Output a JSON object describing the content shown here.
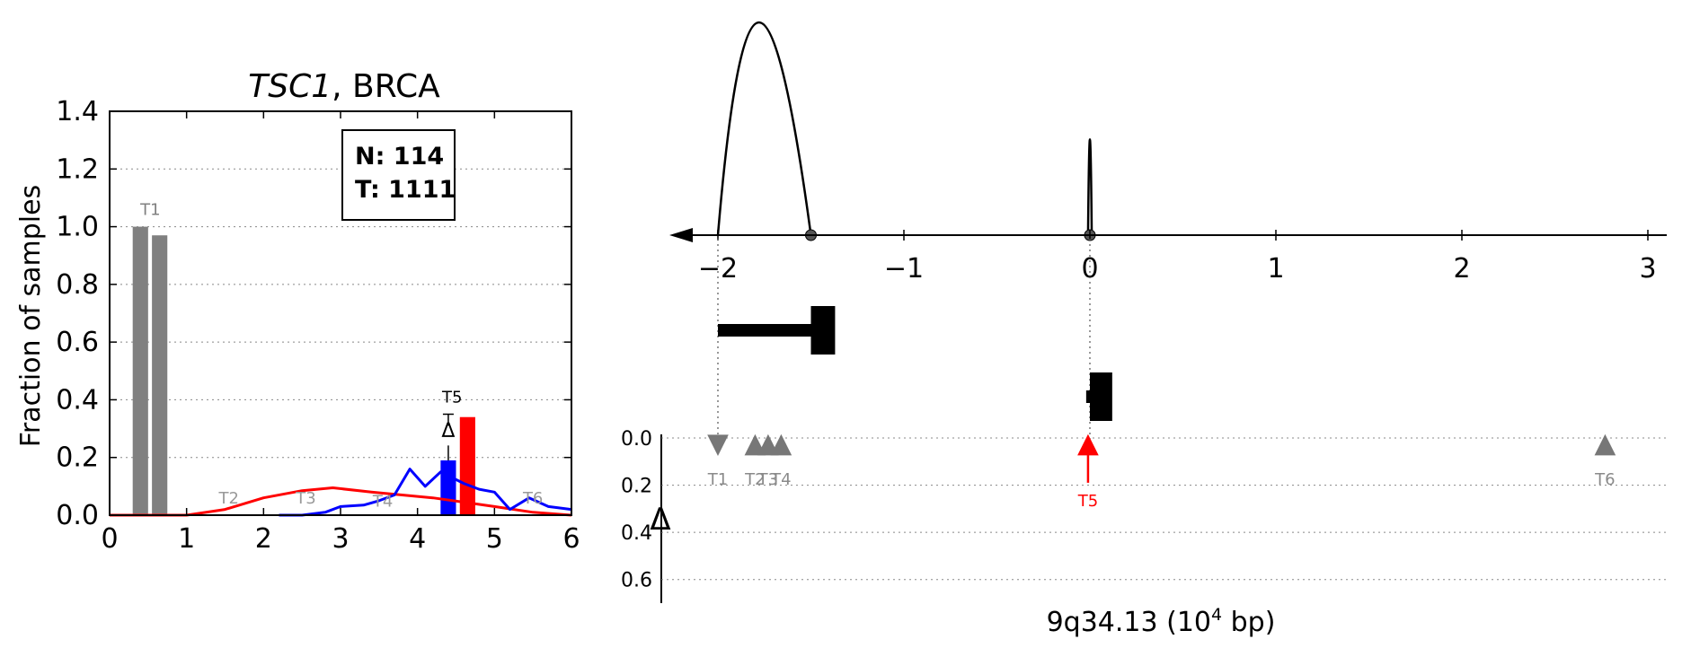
{
  "colors": {
    "normal": "#808080",
    "tumor": "#ff0000",
    "sample": "#0000ff",
    "transcript": "#000000",
    "marker": "#777777",
    "highlight": "#ff0000"
  },
  "chart_data": [
    {
      "type": "bar",
      "title_italic": "TSC1",
      "title_rest": ", BRCA",
      "xlabel": "",
      "ylabel": "Fraction of samples",
      "xlim": [
        0,
        6
      ],
      "ylim": [
        0,
        1.4
      ],
      "xticks": [
        "0",
        "1",
        "2",
        "3",
        "4",
        "5",
        "6"
      ],
      "yticks": [
        "0.0",
        "0.2",
        "0.4",
        "0.6",
        "0.8",
        "1.0",
        "1.2",
        "1.4"
      ],
      "grid": "horizontal dotted",
      "legend_box": {
        "placement": "top-right",
        "n_text": "N: 114",
        "t_text": "T: 1111"
      },
      "bars": [
        {
          "x": 0.4,
          "value": 1.0,
          "series": "normal"
        },
        {
          "x": 0.65,
          "value": 0.97,
          "series": "normal"
        },
        {
          "x": 4.4,
          "value": 0.19,
          "series": "sample"
        },
        {
          "x": 4.65,
          "value": 0.34,
          "series": "tumor"
        }
      ],
      "bar_labels": [
        {
          "text": "T1",
          "x": 0.53,
          "y": 1.04,
          "highlight": false
        },
        {
          "text": "T5",
          "x": 4.45,
          "y": 0.39,
          "highlight": true
        }
      ],
      "delta_marker": {
        "text": "Δ",
        "x": 4.4,
        "y": 0.27
      },
      "series": [
        {
          "name": "",
          "color_key": "tumor",
          "x": [
            0.0,
            0.5,
            1.0,
            1.5,
            2.0,
            2.5,
            2.9,
            3.4,
            3.8,
            4.2,
            4.6,
            5.0,
            5.5,
            6.0
          ],
          "y": [
            0.0,
            0.0,
            0.0,
            0.02,
            0.06,
            0.085,
            0.095,
            0.08,
            0.07,
            0.06,
            0.045,
            0.03,
            0.01,
            0.0
          ]
        },
        {
          "name": "",
          "color_key": "sample",
          "x": [
            2.2,
            2.5,
            2.8,
            3.0,
            3.3,
            3.5,
            3.7,
            3.9,
            4.1,
            4.3,
            4.45,
            4.6,
            4.8,
            5.0,
            5.2,
            5.45,
            5.7,
            6.0
          ],
          "y": [
            0.0,
            0.0,
            0.01,
            0.03,
            0.035,
            0.05,
            0.07,
            0.16,
            0.1,
            0.15,
            0.13,
            0.11,
            0.09,
            0.08,
            0.02,
            0.06,
            0.03,
            0.02
          ]
        }
      ],
      "faint_labels": [
        {
          "text": "T2",
          "x": 1.55,
          "y": 0.04
        },
        {
          "text": "T3",
          "x": 2.55,
          "y": 0.04
        },
        {
          "text": "T4",
          "x": 3.55,
          "y": 0.03
        },
        {
          "text": "T6",
          "x": 5.5,
          "y": 0.04
        }
      ]
    },
    {
      "type": "line",
      "xlabel_main": "9q34.13 (10",
      "xlabel_sup": "4",
      "xlabel_end": " bp)",
      "xlim": [
        -2.25,
        3.05
      ],
      "xticks": [
        {
          "label": "−2",
          "x": -2
        },
        {
          "label": "−1",
          "x": -1
        },
        {
          "label": "0",
          "x": 0
        },
        {
          "label": "1",
          "x": 1
        },
        {
          "label": "2",
          "x": 2
        },
        {
          "label": "3",
          "x": 3
        }
      ],
      "arcs": [
        {
          "from": -2.0,
          "to": -1.5,
          "height": 1.0
        },
        {
          "from": -0.01,
          "to": 0.01,
          "height": 0.45
        }
      ],
      "axis_points": [
        -1.5,
        0.0
      ],
      "transcripts": [
        {
          "x_start": -2.0,
          "x_end": -1.5,
          "thick_start": -1.5,
          "thick_end": -1.37,
          "row": 1
        },
        {
          "x_start": -0.02,
          "x_end": 0.04,
          "thick_start": 0.0,
          "thick_end": 0.12,
          "row": 2
        }
      ],
      "guides": [
        -2.0,
        0.0
      ],
      "delta_panel": {
        "ylabel": "Δ",
        "ylim": [
          0.0,
          0.7
        ],
        "yticks": [
          "0.0",
          "0.2",
          "0.4",
          "0.6"
        ],
        "markers": [
          {
            "label": "T1",
            "x": -2.0,
            "y": 0.03,
            "shape": "down",
            "highlight": false
          },
          {
            "label": "T2",
            "x": -1.8,
            "y": 0.03,
            "shape": "up",
            "highlight": false
          },
          {
            "label": "T3",
            "x": -1.73,
            "y": 0.03,
            "shape": "up",
            "highlight": false
          },
          {
            "label": "T4",
            "x": -1.66,
            "y": 0.03,
            "shape": "up",
            "highlight": false
          },
          {
            "label": "T5",
            "x": -0.01,
            "y": 0.03,
            "shape": "up",
            "highlight": true
          },
          {
            "label": "T6",
            "x": 2.77,
            "y": 0.03,
            "shape": "up",
            "highlight": false
          }
        ]
      }
    }
  ]
}
